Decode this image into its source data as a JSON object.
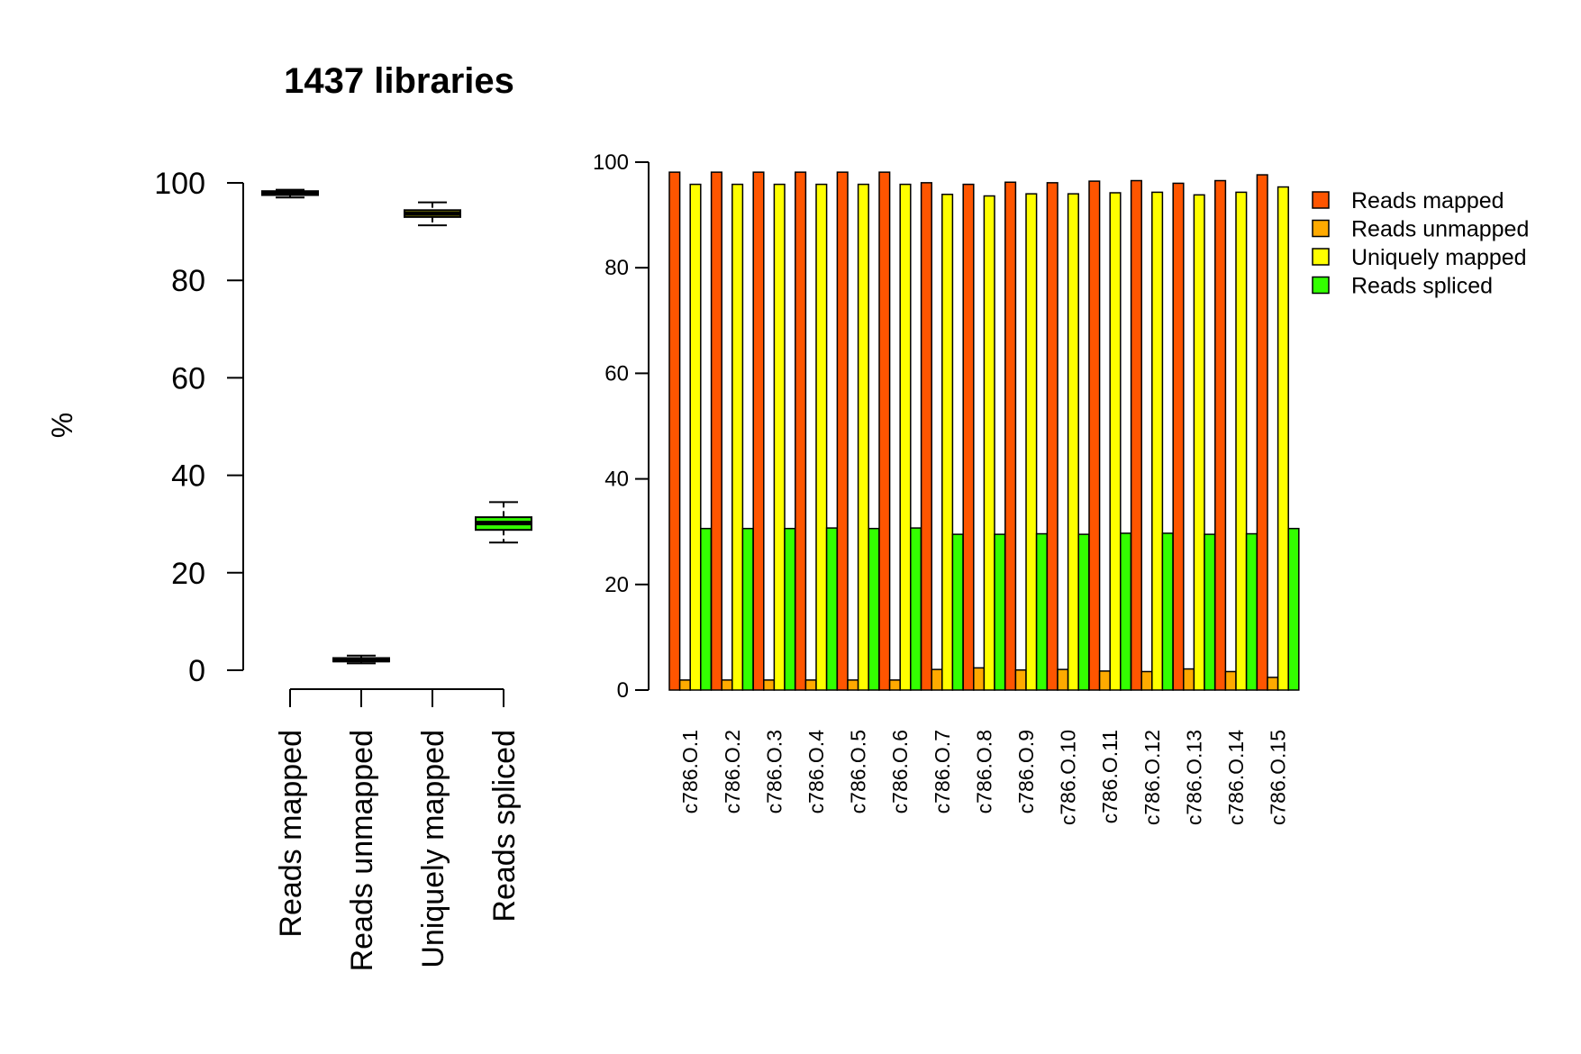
{
  "chart_data": [
    {
      "type": "box",
      "title": "1437 libraries",
      "xlabel": "",
      "ylabel": "%",
      "ylim": [
        0,
        100
      ],
      "yticks": [
        0,
        20,
        40,
        60,
        80,
        100
      ],
      "categories": [
        "Reads mapped",
        "Reads unmapped",
        "Uniquely mapped",
        "Reads spliced"
      ],
      "boxes": [
        {
          "name": "Reads mapped",
          "whisker_low": 97.0,
          "q1": 97.5,
          "median": 97.9,
          "q3": 98.3,
          "whisker_high": 98.6,
          "color": "#ff5500"
        },
        {
          "name": "Reads unmapped",
          "whisker_low": 1.4,
          "q1": 1.8,
          "median": 2.1,
          "q3": 2.5,
          "whisker_high": 3.0,
          "color": "#ffaa00"
        },
        {
          "name": "Uniquely mapped",
          "whisker_low": 91.3,
          "q1": 93.0,
          "median": 93.7,
          "q3": 94.4,
          "whisker_high": 96.0,
          "color": "#ffff00"
        },
        {
          "name": "Reads spliced",
          "whisker_low": 26.2,
          "q1": 28.8,
          "median": 30.2,
          "q3": 31.4,
          "whisker_high": 34.5,
          "color": "#33ff00"
        }
      ]
    },
    {
      "type": "bar",
      "title": "",
      "xlabel": "",
      "ylabel": "",
      "ylim": [
        0,
        100
      ],
      "yticks": [
        0,
        20,
        40,
        60,
        80,
        100
      ],
      "categories": [
        "c786.O.1",
        "c786.O.2",
        "c786.O.3",
        "c786.O.4",
        "c786.O.5",
        "c786.O.6",
        "c786.O.7",
        "c786.O.8",
        "c786.O.9",
        "c786.O.10",
        "c786.O.11",
        "c786.O.12",
        "c786.O.13",
        "c786.O.14",
        "c786.O.15"
      ],
      "legend_position": "right",
      "series": [
        {
          "name": "Reads mapped",
          "color": "#ff5500",
          "values": [
            98.1,
            98.1,
            98.1,
            98.1,
            98.1,
            98.1,
            96.1,
            95.8,
            96.2,
            96.1,
            96.4,
            96.5,
            96.0,
            96.5,
            97.6
          ]
        },
        {
          "name": "Reads unmapped",
          "color": "#ffaa00",
          "values": [
            1.9,
            1.9,
            1.9,
            1.9,
            1.9,
            1.9,
            3.9,
            4.2,
            3.8,
            3.9,
            3.6,
            3.5,
            4.0,
            3.5,
            2.4
          ]
        },
        {
          "name": "Uniquely mapped",
          "color": "#ffff00",
          "values": [
            95.8,
            95.8,
            95.8,
            95.8,
            95.8,
            95.8,
            93.9,
            93.6,
            94.0,
            94.0,
            94.2,
            94.3,
            93.8,
            94.3,
            95.3
          ]
        },
        {
          "name": "Reads spliced",
          "color": "#33ff00",
          "values": [
            30.6,
            30.6,
            30.6,
            30.7,
            30.6,
            30.7,
            29.5,
            29.5,
            29.6,
            29.5,
            29.7,
            29.7,
            29.5,
            29.6,
            30.6
          ]
        }
      ]
    }
  ]
}
